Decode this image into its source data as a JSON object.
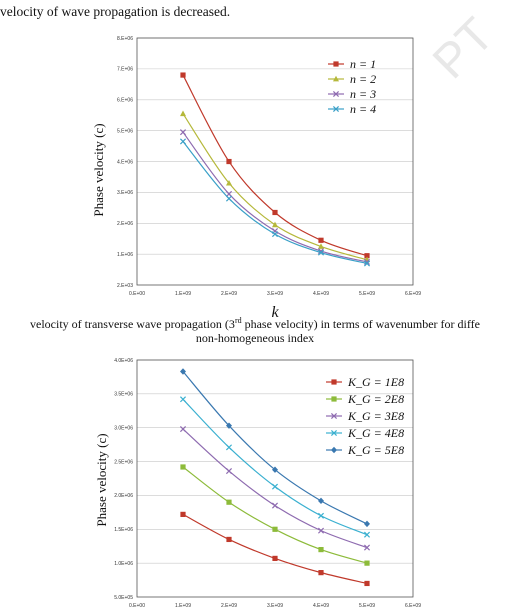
{
  "page": {
    "intro_text": "velocity of wave propagation is decreased.",
    "caption1_line1": "velocity of transverse wave propagation (3rd phase velocity) in terms of wavenumber for diffe",
    "caption1_line2": "non-homogeneous index",
    "watermark": "PT"
  },
  "chart_data": [
    {
      "type": "line",
      "ylabel": "Phase velocity (c)",
      "xlabel": "k",
      "x": [
        1000000000.0,
        2000000000.0,
        3000000000.0,
        4000000000.0,
        5000000000.0
      ],
      "xlim": [
        0,
        6000000000.0
      ],
      "ylim": [
        2000,
        8000000
      ],
      "x_ticks": [
        0,
        1000000000.0,
        2000000000.0,
        3000000000.0,
        4000000000.0,
        5000000000.0,
        6000000000.0
      ],
      "x_tick_labels": [
        "0.E+00",
        "1.E+09",
        "2.E+09",
        "3.E+09",
        "4.E+09",
        "5.E+09",
        "6.E+09"
      ],
      "y_ticks": [
        2000,
        1000000,
        2000000,
        3000000,
        4000000,
        5000000,
        6000000,
        7000000,
        8000000
      ],
      "y_tick_labels": [
        "2.E+03",
        "1.E+06",
        "2.E+06",
        "3.E+06",
        "4.E+06",
        "5.E+06",
        "6.E+06",
        "7.E+06",
        "8.E+06"
      ],
      "legend_position": "top-right",
      "series": [
        {
          "name": "n = 1",
          "color": "#c0392b",
          "marker": "square",
          "values": [
            6800000,
            4000000,
            2350000,
            1450000,
            950000
          ]
        },
        {
          "name": "n = 2",
          "color": "#b5b83a",
          "marker": "triangle",
          "values": [
            5550000,
            3300000,
            1950000,
            1250000,
            820000
          ]
        },
        {
          "name": "n = 3",
          "color": "#8e6bb0",
          "marker": "x",
          "values": [
            4950000,
            2950000,
            1750000,
            1100000,
            750000
          ]
        },
        {
          "name": "n = 4",
          "color": "#3aa0c8",
          "marker": "x",
          "values": [
            4650000,
            2800000,
            1650000,
            1050000,
            700000
          ]
        }
      ]
    },
    {
      "type": "line",
      "ylabel": "Phase velocity (c)",
      "xlabel": "",
      "x": [
        1000000000.0,
        2000000000.0,
        3000000000.0,
        4000000000.0,
        5000000000.0
      ],
      "xlim": [
        0,
        6000000000.0
      ],
      "ylim": [
        500000,
        4000000
      ],
      "x_ticks": [
        0,
        1000000000.0,
        2000000000.0,
        3000000000.0,
        4000000000.0,
        5000000000.0,
        6000000000.0
      ],
      "x_tick_labels": [
        "0.E+00",
        "1.E+09",
        "2.E+09",
        "3.E+09",
        "4.E+09",
        "5.E+09",
        "6.E+09"
      ],
      "y_ticks": [
        500000,
        1000000,
        1500000,
        2000000,
        2500000,
        3000000,
        3500000,
        4000000
      ],
      "y_tick_labels": [
        "5.0E+05",
        "1.0E+06",
        "1.5E+06",
        "2.0E+06",
        "2.5E+06",
        "3.0E+06",
        "3.5E+06",
        "4.0E+06"
      ],
      "legend_position": "top-right",
      "series": [
        {
          "name": "K_G = 1E8",
          "color": "#c0392b",
          "marker": "square",
          "values": [
            1720000,
            1350000,
            1070000,
            860000,
            700000
          ]
        },
        {
          "name": "K_G = 2E8",
          "color": "#8dbb3a",
          "marker": "square",
          "values": [
            2420000,
            1900000,
            1500000,
            1200000,
            1000000
          ]
        },
        {
          "name": "K_G = 3E8",
          "color": "#8e6bb0",
          "marker": "x",
          "values": [
            2980000,
            2360000,
            1850000,
            1480000,
            1230000
          ]
        },
        {
          "name": "K_G = 4E8",
          "color": "#3ab0d0",
          "marker": "x",
          "values": [
            3420000,
            2710000,
            2130000,
            1700000,
            1420000
          ]
        },
        {
          "name": "K_G = 5E8",
          "color": "#3a78b0",
          "marker": "diamond",
          "values": [
            3830000,
            3030000,
            2380000,
            1920000,
            1580000
          ]
        }
      ]
    }
  ]
}
